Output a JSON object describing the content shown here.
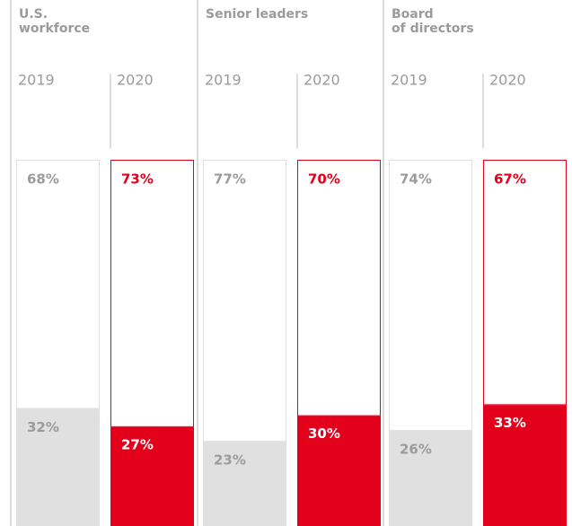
{
  "chart_data": {
    "type": "stacked-bar",
    "ylim": [
      0,
      100
    ],
    "colors": [
      "#e0e0e0",
      "#e2001a"
    ],
    "label_colors": [
      "#9b9b9b",
      "#e2001a"
    ],
    "groups": [
      {
        "title": "U.S.\nworkforce",
        "categories": [
          "2019",
          "2020"
        ],
        "series": [
          {
            "values": [
              32,
              27
            ],
            "value_labels": [
              "32%",
              "27%"
            ]
          },
          {
            "values": [
              68,
              73
            ],
            "value_labels": [
              "68%",
              "73%"
            ]
          }
        ]
      },
      {
        "title": "Senior leaders",
        "categories": [
          "2019",
          "2020"
        ],
        "series": [
          {
            "values": [
              23,
              30
            ],
            "value_labels": [
              "23%",
              "30%"
            ]
          },
          {
            "values": [
              77,
              70
            ],
            "value_labels": [
              "77%",
              "70%"
            ]
          }
        ]
      },
      {
        "title": "Board\nof directors",
        "categories": [
          "2019",
          "2020"
        ],
        "series": [
          {
            "values": [
              26,
              33
            ],
            "value_labels": [
              "26%",
              "33%"
            ]
          },
          {
            "values": [
              74,
              67
            ],
            "value_labels": [
              "74%",
              "67%"
            ]
          }
        ]
      }
    ]
  }
}
